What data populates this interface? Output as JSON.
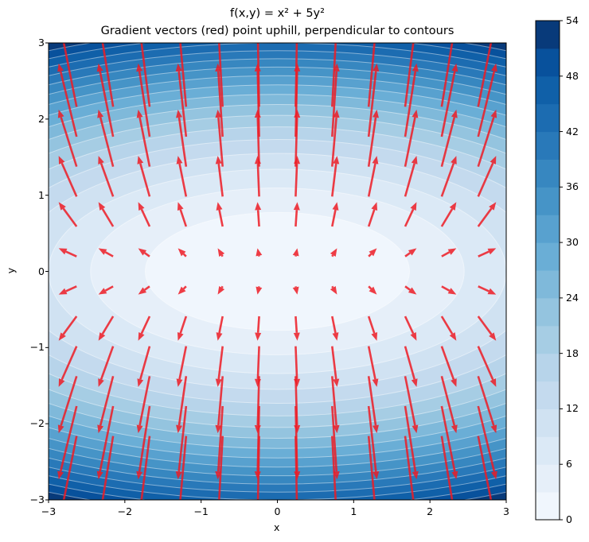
{
  "chart_data": {
    "type": "heatmap",
    "subtype": "filled-contour with quiver",
    "title": "f(x,y) = x² + 5y²",
    "subtitle": "Gradient vectors (red) point uphill, perpendicular to contours",
    "xlabel": "x",
    "ylabel": "y",
    "xlim": [
      -3,
      3
    ],
    "ylim": [
      -3,
      3
    ],
    "xticks": [
      "−3",
      "−2",
      "−1",
      "0",
      "1",
      "2",
      "3"
    ],
    "yticks": [
      "−3",
      "−2",
      "−1",
      "0",
      "1",
      "2",
      "3"
    ],
    "xtick_values": [
      -3,
      -2,
      -1,
      0,
      1,
      2,
      3
    ],
    "ytick_values": [
      -3,
      -2,
      -1,
      0,
      1,
      2,
      3
    ],
    "function": "x^2 + 5*y^2",
    "contour_levels": [
      0,
      3,
      6,
      9,
      12,
      15,
      18,
      21,
      24,
      27,
      30,
      33,
      36,
      39,
      42,
      45,
      48,
      51,
      54
    ],
    "colormap": "Blues",
    "band_colors": [
      "#f0f6fd",
      "#e6eff9",
      "#dbe9f6",
      "#d0e2f2",
      "#c4daee",
      "#b7d4ea",
      "#a6cde4",
      "#94c4df",
      "#7fb9da",
      "#6aaed6",
      "#58a1cf",
      "#4694c7",
      "#3787c0",
      "#2979b9",
      "#1c6cb1",
      "#1060a8",
      "#08519c",
      "#083a7a"
    ],
    "contour_line_color": "#ffffff",
    "colorbar": {
      "ticks": [
        "0",
        "6",
        "12",
        "18",
        "24",
        "30",
        "36",
        "42",
        "48",
        "54"
      ],
      "tick_values": [
        0,
        6,
        12,
        18,
        24,
        30,
        36,
        42,
        48,
        54
      ],
      "range": [
        0,
        54
      ]
    },
    "quiver": {
      "color": "#ee1c25",
      "x_grid": [
        -2.75,
        -2.25,
        -1.75,
        -1.25,
        -0.75,
        -0.25,
        0.25,
        0.75,
        1.25,
        1.75,
        2.25,
        2.75
      ],
      "y_grid": [
        -2.75,
        -2.25,
        -1.75,
        -1.25,
        -0.75,
        -0.25,
        0.25,
        0.75,
        1.25,
        1.75,
        2.25,
        2.75
      ],
      "u": "2x",
      "v": "10y",
      "pivot": "mid",
      "pixels_per_unit": 4.1
    }
  }
}
